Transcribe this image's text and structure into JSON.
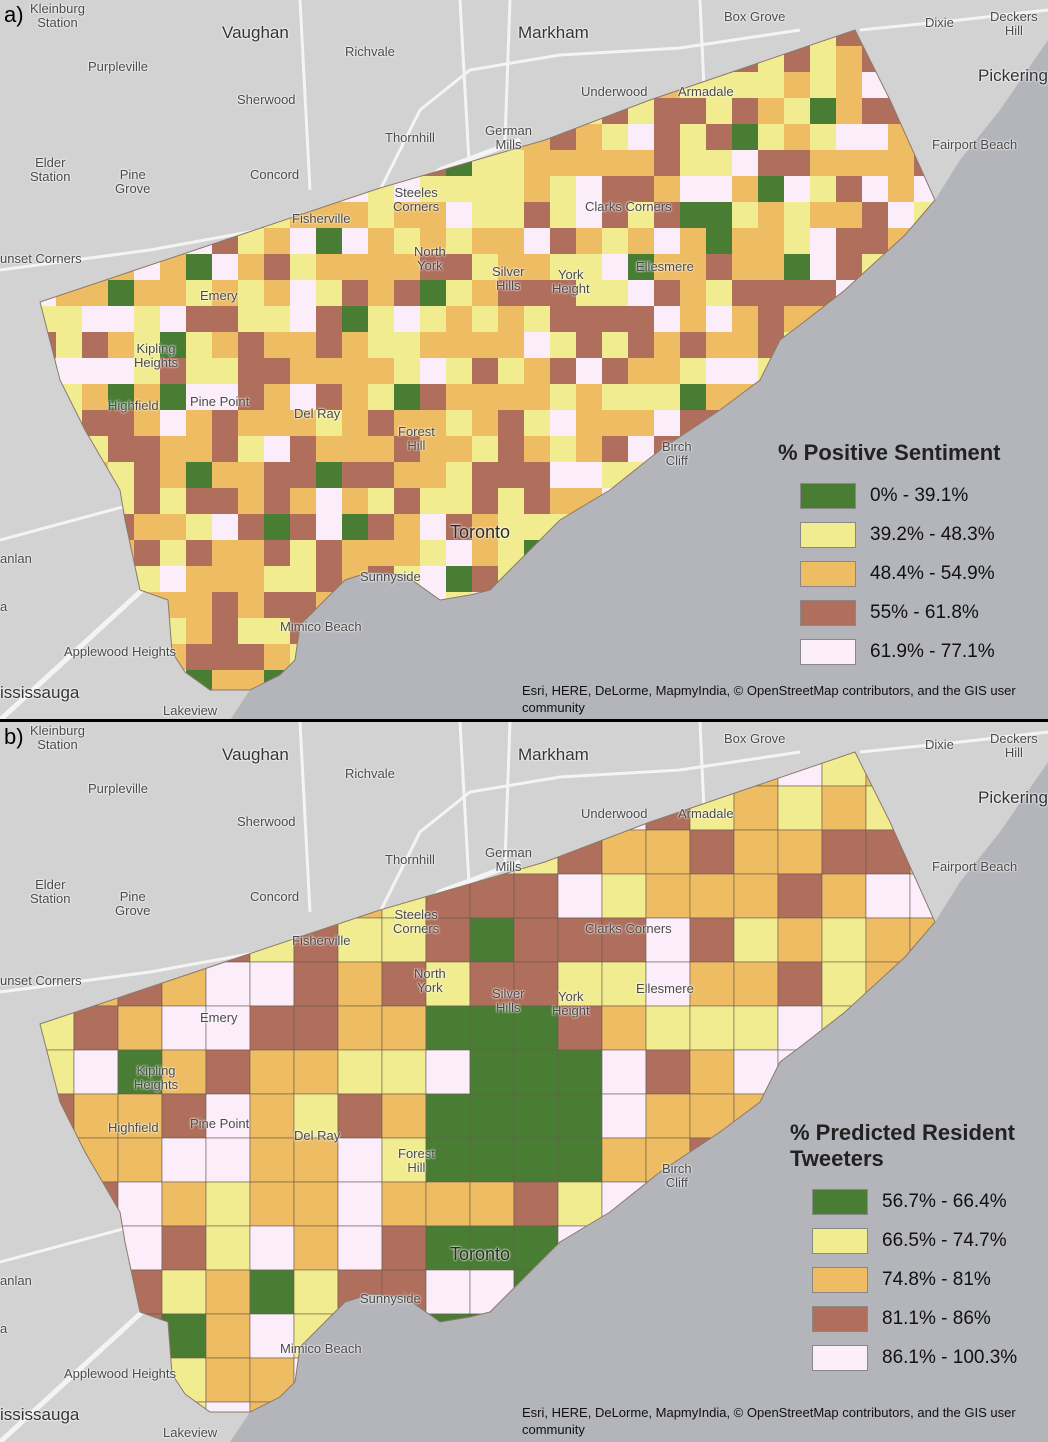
{
  "colors": {
    "green": "#4a7d34",
    "yellow": "#f2ec90",
    "orange": "#edbc63",
    "brown": "#b06e5c",
    "pink": "#fbeefa",
    "water": "#b4b5bb",
    "land": "#d2d2d2"
  },
  "panels": [
    {
      "label": "a)",
      "legend": {
        "title": "% Positive Sentiment",
        "items": [
          {
            "range": "0% - 39.1%",
            "color": "#4a7d34"
          },
          {
            "range": "39.2% - 48.3%",
            "color": "#f2ec90"
          },
          {
            "range": "48.4% - 54.9%",
            "color": "#edbc63"
          },
          {
            "range": "55% - 61.8%",
            "color": "#b06e5c"
          },
          {
            "range": "61.9% - 77.1%",
            "color": "#fbeefa"
          }
        ]
      },
      "attribution": "Esri, HERE, DeLorme, MapmyIndia, © OpenStreetMap contributors, and the GIS user community"
    },
    {
      "label": "b)",
      "legend": {
        "title": "% Predicted Resident Tweeters",
        "items": [
          {
            "range": "56.7% - 66.4%",
            "color": "#4a7d34"
          },
          {
            "range": "66.5% - 74.7%",
            "color": "#f2ec90"
          },
          {
            "range": "74.8% - 81%",
            "color": "#edbc63"
          },
          {
            "range": "81.1% - 86%",
            "color": "#b06e5c"
          },
          {
            "range": "86.1% - 100.3%",
            "color": "#fbeefa"
          }
        ]
      },
      "attribution": "Esri, HERE, DeLorme, MapmyIndia, © OpenStreetMap contributors, and the GIS user community"
    }
  ],
  "places": {
    "kleinburg": "Kleinburg\nStation",
    "vaughan": "Vaughan",
    "richvale": "Richvale",
    "markham": "Markham",
    "box_grove": "Box Grove",
    "dixie": "Dixie",
    "deckers_hill": "Deckers\nHill",
    "purpleville": "Purpleville",
    "pickering": "Pickering",
    "underwood": "Underwood",
    "armadale": "Armadale",
    "sherwood": "Sherwood",
    "thornhill": "Thornhill",
    "german_mills": "German\nMills",
    "fairport_beach": "Fairport Beach",
    "elder_station": "Elder\nStation",
    "pine_grove": "Pine\nGrove",
    "concord": "Concord",
    "steeles_corners": "Steeles\nCorners",
    "fisherville": "Fisherville",
    "clarks_corners": "Clarks Corners",
    "sunset_corners": "unset Corners",
    "north_york": "North\nYork",
    "silver_hills": "Silver\nHills",
    "york_height": "York\nHeight",
    "ellesmere": "Ellesmere",
    "emery": "Emery",
    "kipling_heights": "Kipling\nHeights",
    "highfield": "Highfield",
    "pine_point": "Pine Point",
    "del_ray": "Del Ray",
    "forest_hill": "Forest\nHill",
    "birch_cliff": "Birch\nCliff",
    "toronto": "Toronto",
    "anlan": "anlan",
    "sunnyside": "Sunnyside",
    "a_fragment": "a",
    "mimico_beach": "Mimico Beach",
    "applewood_heights": "Applewood Heights",
    "mississauga": "ississauga",
    "lakeview": "Lakeview"
  }
}
